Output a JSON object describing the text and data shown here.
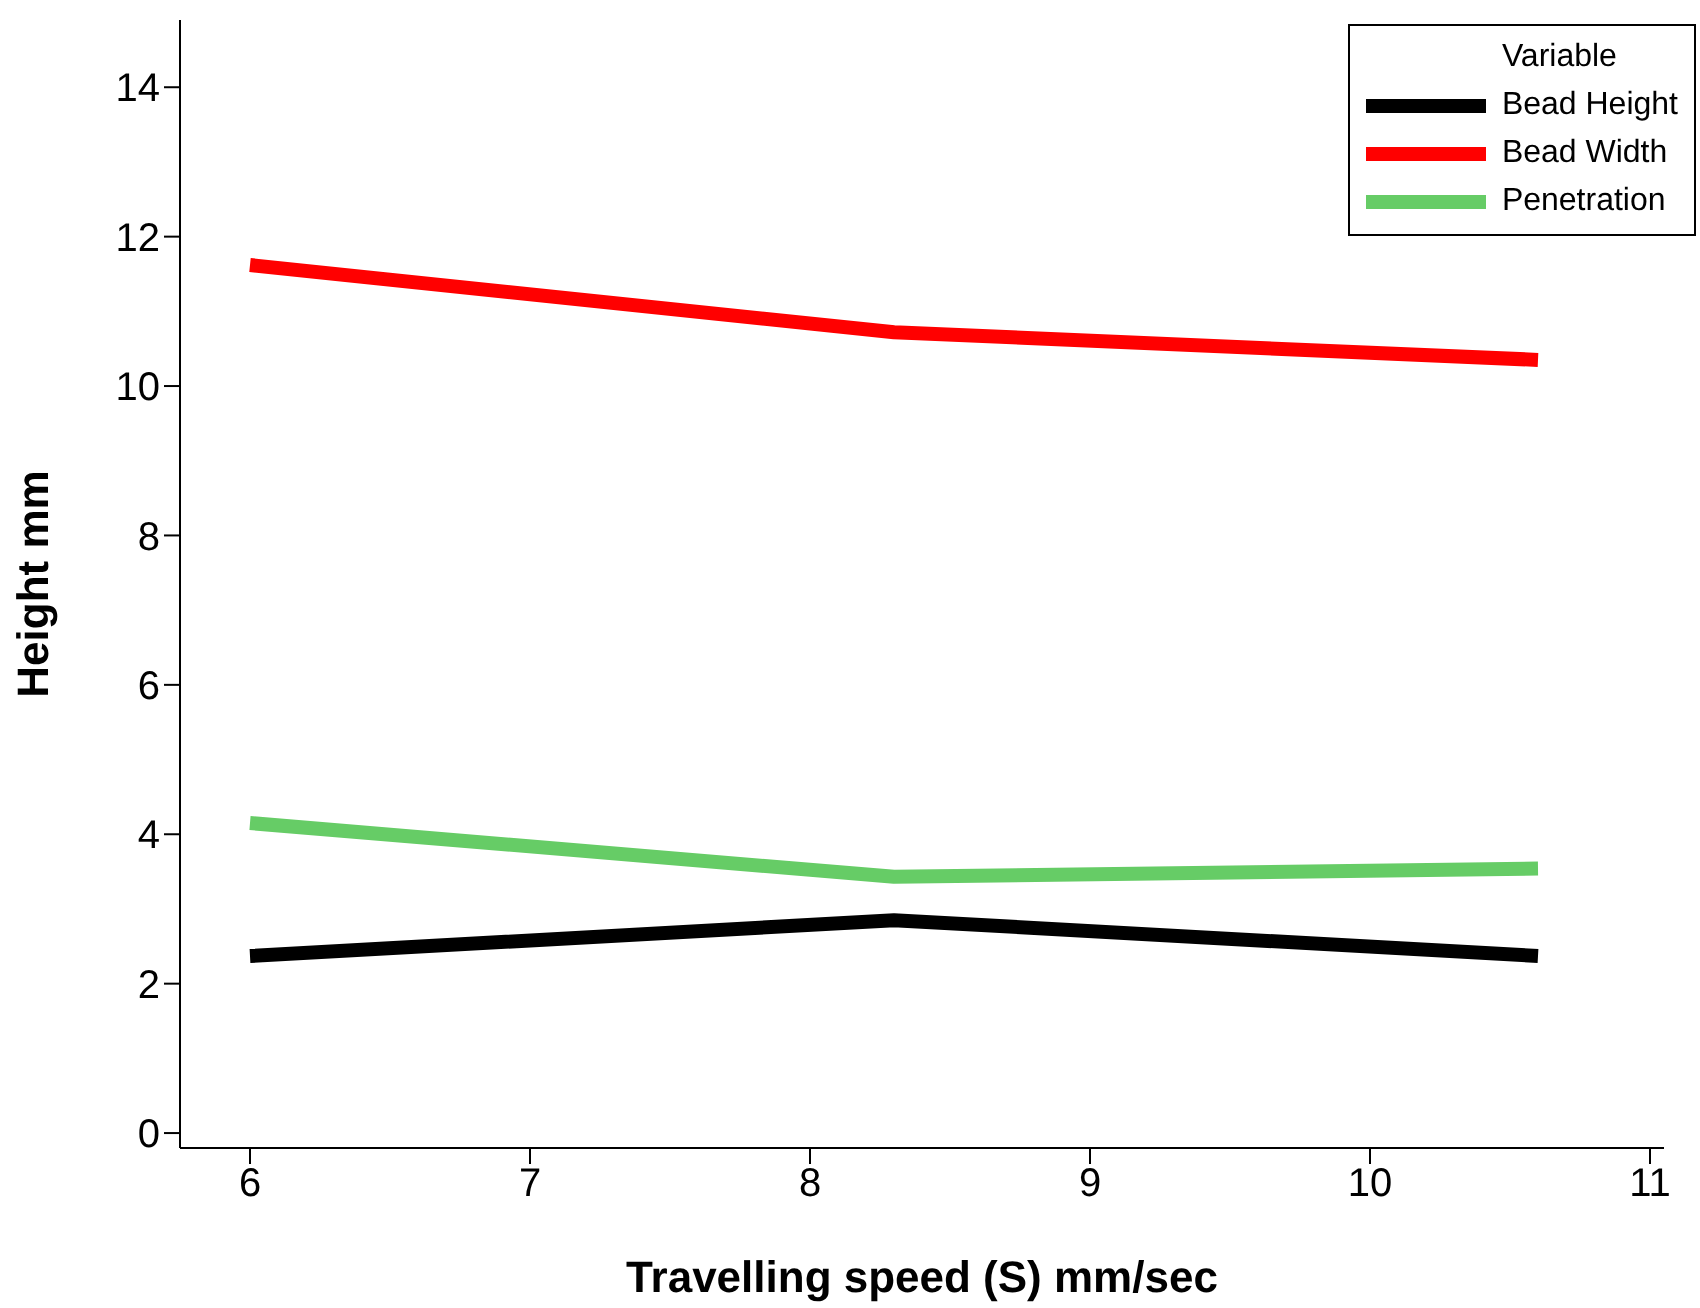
{
  "chart_data": {
    "type": "line",
    "xlabel": "Travelling speed (S) mm/sec",
    "ylabel": "Height  mm",
    "legend_title": "Variable",
    "legend": "top right",
    "marker": "none",
    "line_style": "solid",
    "grid": false,
    "x": [
      6,
      8.3,
      10.6
    ],
    "xlim": [
      5.75,
      11.05
    ],
    "xticks": [
      6,
      7,
      8,
      9,
      10,
      11
    ],
    "ylim": [
      -0.2,
      14.9
    ],
    "yticks": [
      0,
      2,
      4,
      6,
      8,
      10,
      12,
      14
    ],
    "series": [
      {
        "name": "Bead Height",
        "color": "#000000",
        "values": [
          2.37,
          2.85,
          2.37
        ]
      },
      {
        "name": "Bead Width",
        "color": "#ff0000",
        "values": [
          11.62,
          10.72,
          10.35
        ]
      },
      {
        "name": "Penetration",
        "color": "#66cc66",
        "values": [
          4.15,
          3.43,
          3.54
        ]
      }
    ]
  }
}
